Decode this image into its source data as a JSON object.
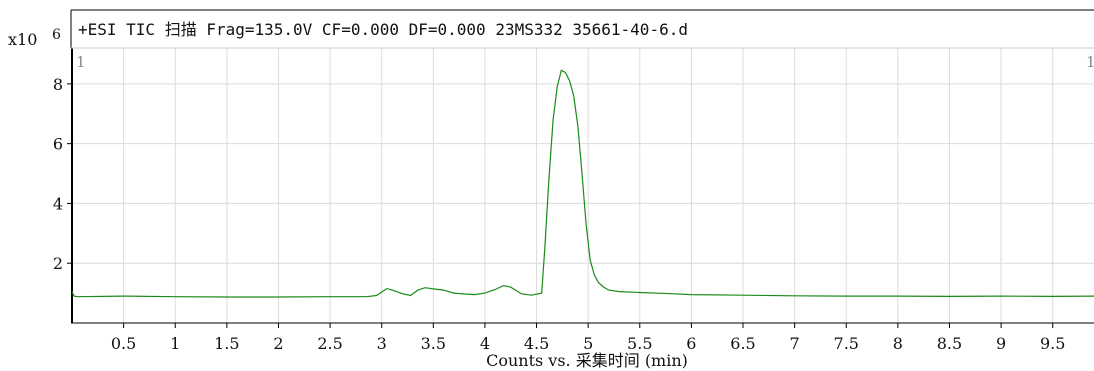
{
  "chart_data": {
    "type": "line",
    "title": "+ESI TIC 扫描 Frag=135.0V CF=0.000 DF=0.000 23MS332 35661-40-6.d",
    "xlabel": "Counts vs. 采集时间 (min)",
    "ylabel": "",
    "y_multiplier": "x10",
    "y_multiplier_exp": "6",
    "corner_left": "1",
    "corner_right": "1",
    "xlim": [
      0,
      9.9
    ],
    "ylim": [
      0,
      9.2
    ],
    "x_ticks": [
      0.5,
      1,
      1.5,
      2,
      2.5,
      3,
      3.5,
      4,
      4.5,
      5,
      5.5,
      6,
      6.5,
      7,
      7.5,
      8,
      8.5,
      9,
      9.5
    ],
    "x_tick_labels": [
      "0.5",
      "1",
      "1.5",
      "2",
      "2.5",
      "3",
      "3.5",
      "4",
      "4.5",
      "5",
      "5.5",
      "6",
      "6.5",
      "7",
      "7.5",
      "8",
      "8.5",
      "9",
      "9.5"
    ],
    "y_ticks": [
      2,
      4,
      6,
      8
    ],
    "y_tick_labels": [
      "2",
      "4",
      "6",
      "8"
    ],
    "grid": true,
    "line_color": "#1a8a1a",
    "series": [
      {
        "x": [
          0.0,
          0.02,
          0.05,
          0.5,
          1.0,
          1.5,
          2.0,
          2.5,
          2.85,
          2.95,
          3.05,
          3.12,
          3.2,
          3.28,
          3.35,
          3.42,
          3.5,
          3.6,
          3.7,
          3.8,
          3.9,
          4.0,
          4.1,
          4.18,
          4.25,
          4.35,
          4.45,
          4.55,
          4.58,
          4.62,
          4.66,
          4.7,
          4.74,
          4.78,
          4.82,
          4.86,
          4.9,
          4.94,
          4.98,
          5.02,
          5.06,
          5.1,
          5.15,
          5.2,
          5.3,
          5.5,
          5.8,
          6.0,
          6.5,
          7.0,
          7.5,
          8.0,
          8.5,
          9.0,
          9.5,
          9.9
        ],
        "y": [
          1.05,
          0.9,
          0.88,
          0.9,
          0.88,
          0.87,
          0.87,
          0.88,
          0.88,
          0.92,
          1.15,
          1.08,
          0.98,
          0.92,
          1.1,
          1.18,
          1.14,
          1.1,
          1.0,
          0.97,
          0.95,
          1.0,
          1.12,
          1.25,
          1.2,
          0.98,
          0.93,
          1.0,
          2.5,
          4.8,
          6.8,
          7.9,
          8.45,
          8.38,
          8.1,
          7.6,
          6.6,
          5.0,
          3.3,
          2.1,
          1.6,
          1.35,
          1.2,
          1.1,
          1.05,
          1.02,
          0.98,
          0.95,
          0.93,
          0.91,
          0.9,
          0.9,
          0.89,
          0.9,
          0.89,
          0.9
        ]
      }
    ]
  }
}
